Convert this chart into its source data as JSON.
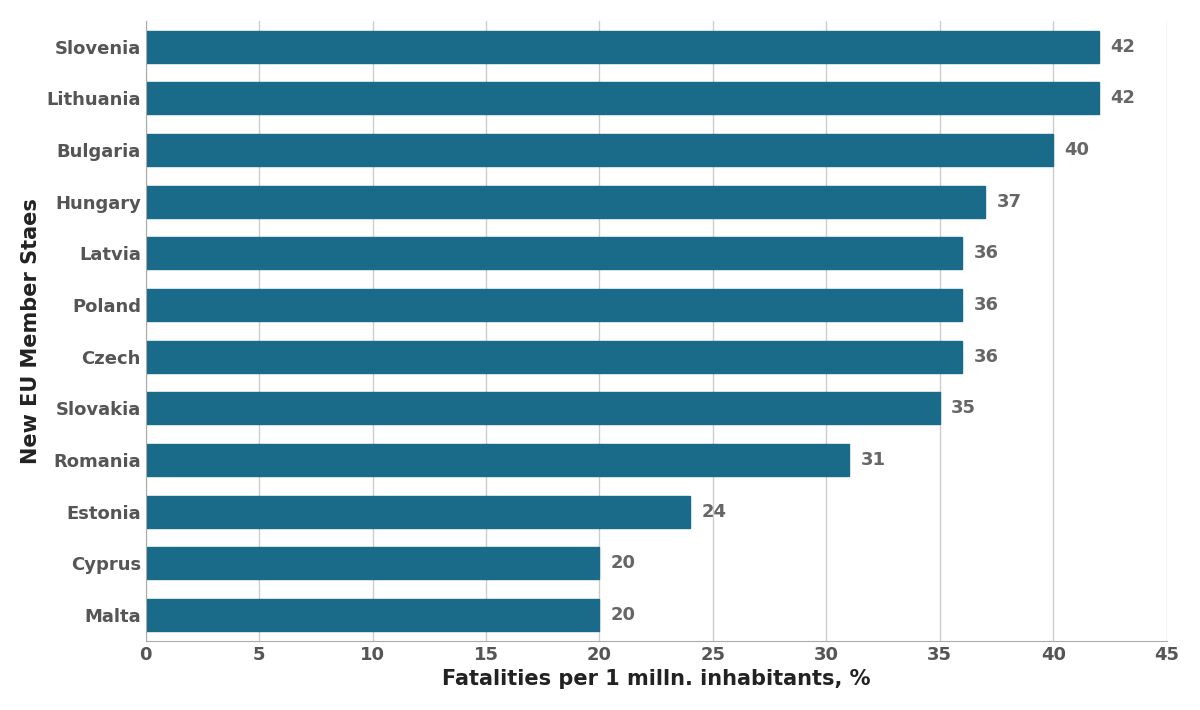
{
  "countries": [
    "Slovenia",
    "Lithuania",
    "Bulgaria",
    "Hungary",
    "Latvia",
    "Poland",
    "Czech",
    "Slovakia",
    "Romania",
    "Estonia",
    "Cyprus",
    "Malta"
  ],
  "values": [
    42,
    42,
    40,
    37,
    36,
    36,
    36,
    35,
    31,
    24,
    20,
    20
  ],
  "bar_color": "#1a6b8a",
  "xlabel": "Fatalities per 1 milln. inhabitants, %",
  "ylabel": "New EU Member Staes",
  "xlim": [
    0,
    45
  ],
  "xticks": [
    0,
    5,
    10,
    15,
    20,
    25,
    30,
    35,
    40,
    45
  ],
  "label_fontsize": 15,
  "tick_fontsize": 13,
  "ylabel_fontsize": 15,
  "bar_label_fontsize": 13,
  "bar_label_color": "#666666",
  "grid_color": "#cccccc",
  "background_color": "#ffffff",
  "spine_color": "#aaaaaa"
}
